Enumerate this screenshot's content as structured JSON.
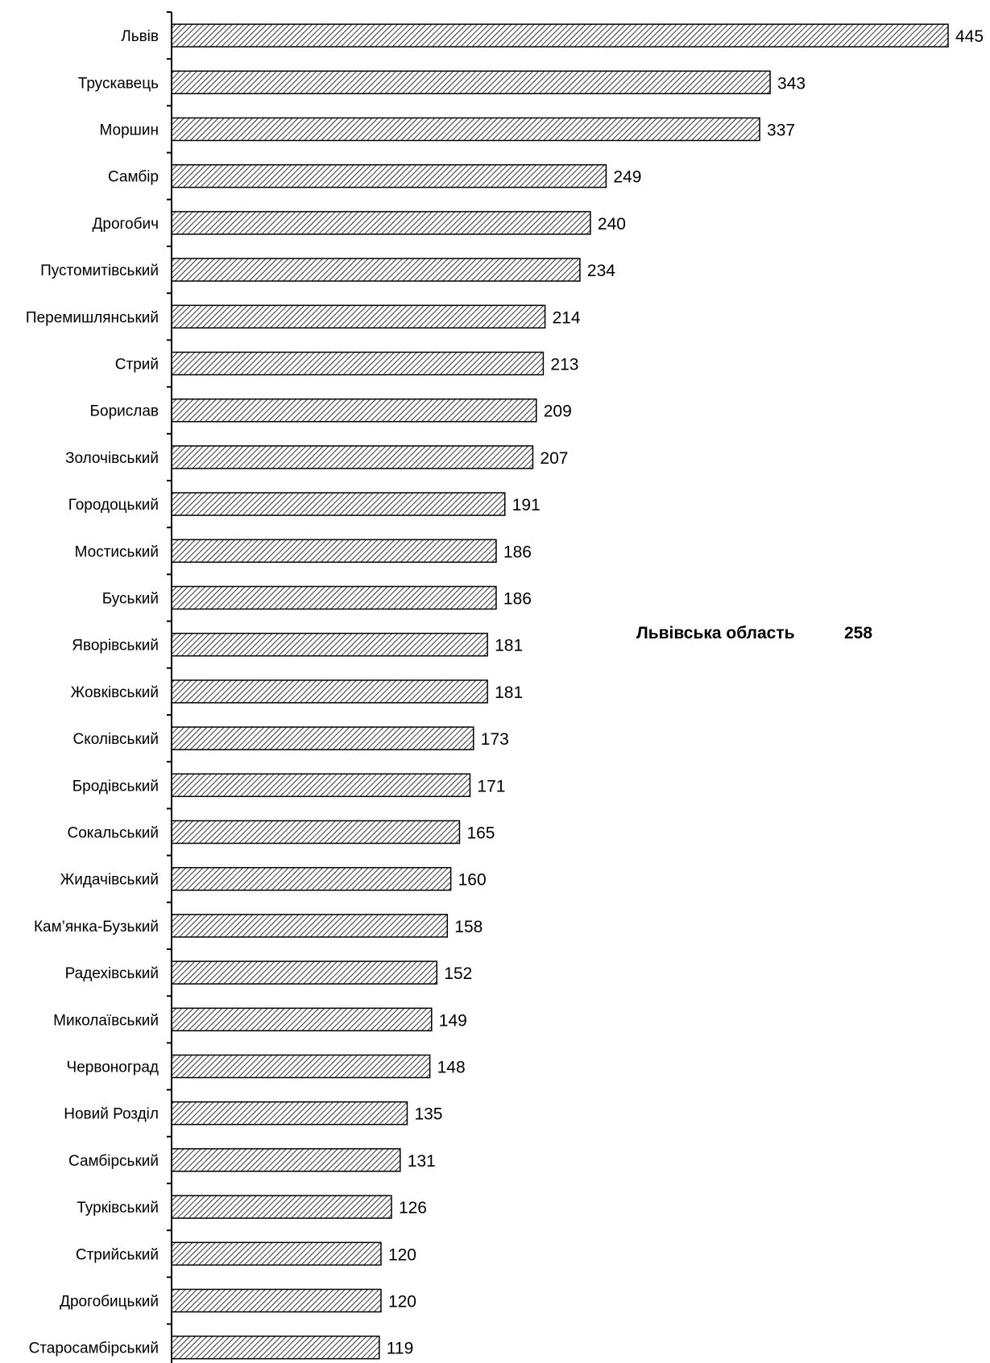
{
  "chart_data": {
    "type": "bar",
    "orientation": "horizontal",
    "title": "",
    "xlabel": "",
    "ylabel": "",
    "categories": [
      "Львів",
      "Трускавець",
      "Моршин",
      "Самбір",
      "Дрогобич",
      "Пустомитівський",
      "Перемишлянський",
      "Стрий",
      "Борислав",
      "Золочівський",
      "Городоцький",
      "Мостиський",
      "Буський",
      "Яворівський",
      "Жовківський",
      "Сколівський",
      "Бродівський",
      "Сокальський",
      "Жидачівський",
      "Кам’янка-Бузький",
      "Радехівський",
      "Миколаївський",
      "Червоноград",
      "Новий Розділ",
      "Самбірський",
      "Турківський",
      "Стрийський",
      "Дрогобицький",
      "Старосамбірський"
    ],
    "values": [
      445,
      343,
      337,
      249,
      240,
      234,
      214,
      213,
      209,
      207,
      191,
      186,
      186,
      181,
      181,
      173,
      171,
      165,
      160,
      158,
      152,
      149,
      148,
      135,
      131,
      126,
      120,
      120,
      119
    ],
    "xlim": [
      0,
      445
    ],
    "grid": false,
    "legend": "none",
    "bar_pattern": "diagonal-hatch",
    "annotation": {
      "label": "Львівська область",
      "value": "258"
    }
  }
}
